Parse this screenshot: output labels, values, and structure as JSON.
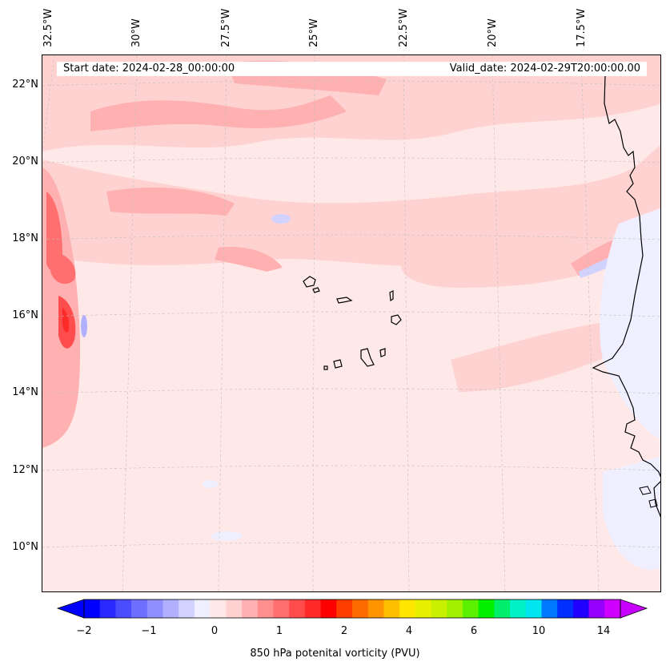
{
  "map": {
    "start_date_text": "Start date: 2024-02-28_00:00:00",
    "valid_date_text": "Valid_date: 2024-02-29T20:00:00.00",
    "lon_labels": [
      "32.5°W",
      "30°W",
      "27.5°W",
      "25°W",
      "22.5°W",
      "20°W",
      "17.5°W"
    ],
    "lat_labels": [
      "22°N",
      "20°N",
      "18°N",
      "16°N",
      "14°N",
      "12°N",
      "10°N"
    ],
    "background_color": "#ffe8e8",
    "coastline_color": "#000000"
  },
  "colorbar": {
    "label": "850 hPa potenital vorticity (PVU)",
    "tick_labels": [
      "−2",
      "−1",
      "0",
      "1",
      "2",
      "4",
      "6",
      "10",
      "14"
    ],
    "colors": [
      "#0000ff",
      "#2a2aff",
      "#4c4cff",
      "#6f6fff",
      "#8f8fff",
      "#b0b0ff",
      "#d2d2ff",
      "#efefff",
      "#ffe8e8",
      "#ffd2d2",
      "#ffb0b0",
      "#ff8f8f",
      "#ff6f6f",
      "#ff4c4c",
      "#ff2a2a",
      "#ff0000",
      "#ff3d00",
      "#ff6a00",
      "#ff9400",
      "#ffbe00",
      "#ffe600",
      "#e8f000",
      "#c8f000",
      "#a0f000",
      "#5af000",
      "#00f000",
      "#00f06e",
      "#00f0c8",
      "#00e6f0",
      "#0078ff",
      "#0030ff",
      "#2000ff",
      "#9600ff",
      "#d000ff"
    ],
    "extend_low_color": "#0000ff",
    "extend_high_color": "#c800ff"
  }
}
